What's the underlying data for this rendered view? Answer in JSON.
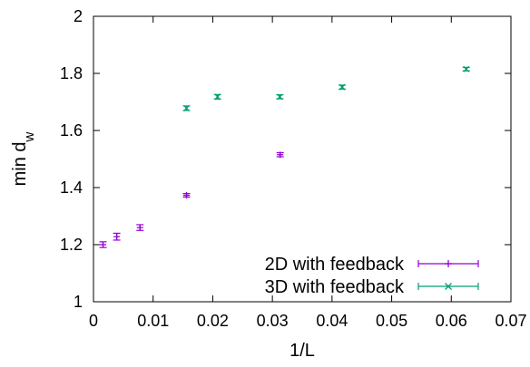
{
  "chart_data": {
    "type": "scatter",
    "xlabel": "1/L",
    "ylabel": "min d",
    "ylabel_sub": "w",
    "xlim": [
      0,
      0.07
    ],
    "ylim": [
      1,
      2
    ],
    "xticks": [
      0,
      0.01,
      0.02,
      0.03,
      0.04,
      0.05,
      0.06,
      0.07
    ],
    "yticks": [
      1,
      1.2,
      1.4,
      1.6,
      1.8,
      2
    ],
    "xtick_labels": [
      "0",
      "0.01",
      "0.02",
      "0.03",
      "0.04",
      "0.05",
      "0.06",
      "0.07"
    ],
    "ytick_labels": [
      "1",
      "1.2",
      "1.4",
      "1.6",
      "1.8",
      "2"
    ],
    "legend_position": "bottom-right",
    "series": [
      {
        "name": "2D with feedback",
        "marker": "plus",
        "color": "#9400d3",
        "x": [
          0.0016,
          0.0039,
          0.0078,
          0.0156,
          0.0313
        ],
        "y": [
          1.2,
          1.228,
          1.26,
          1.373,
          1.515
        ],
        "err": [
          0.01,
          0.012,
          0.01,
          0.006,
          0.007
        ]
      },
      {
        "name": "3D with feedback",
        "marker": "cross",
        "color": "#009e73",
        "x": [
          0.0156,
          0.0208,
          0.03125,
          0.0417,
          0.0625
        ],
        "y": [
          1.678,
          1.718,
          1.718,
          1.752,
          1.815
        ],
        "err": [
          0.008,
          0.008,
          0.007,
          0.007,
          0.006
        ]
      }
    ]
  }
}
